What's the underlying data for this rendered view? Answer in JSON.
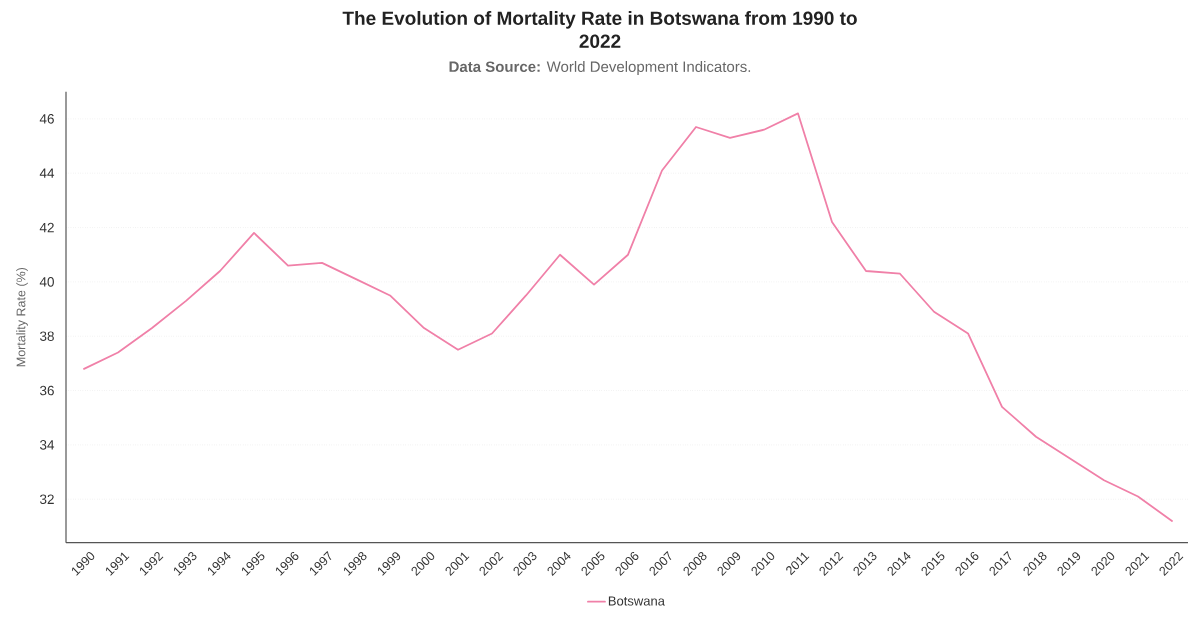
{
  "chart_data": {
    "type": "line",
    "title": "The Evolution of Mortality Rate in Botswana from 1990 to 2022",
    "subtitle": "**Data Source:** World Development Indicators.",
    "ylabel": "Mortality Rate (%)",
    "categories": [
      "1990",
      "1991",
      "1992",
      "1993",
      "1994",
      "1995",
      "1996",
      "1997",
      "1998",
      "1999",
      "2000",
      "2001",
      "2002",
      "2003",
      "2004",
      "2005",
      "2006",
      "2007",
      "2008",
      "2009",
      "2010",
      "2011",
      "2012",
      "2013",
      "2014",
      "2015",
      "2016",
      "2017",
      "2018",
      "2019",
      "2020",
      "2021",
      "2022"
    ],
    "series": [
      {
        "name": "Botswana",
        "color": "#f080a8",
        "values": [
          36.8,
          37.4,
          38.3,
          39.3,
          40.4,
          41.8,
          40.6,
          40.7,
          40.1,
          39.5,
          38.3,
          37.5,
          38.1,
          39.5,
          41.0,
          39.9,
          41.0,
          44.1,
          45.7,
          45.3,
          45.6,
          46.2,
          42.2,
          40.4,
          40.3,
          38.9,
          38.1,
          35.4,
          34.3,
          33.5,
          32.7,
          32.1,
          31.2
        ]
      }
    ],
    "ylim": [
      30.4,
      47
    ],
    "yticks": [
      32,
      34,
      36,
      38,
      40,
      42,
      44,
      46
    ],
    "grid": "y",
    "legend": "bottom"
  }
}
